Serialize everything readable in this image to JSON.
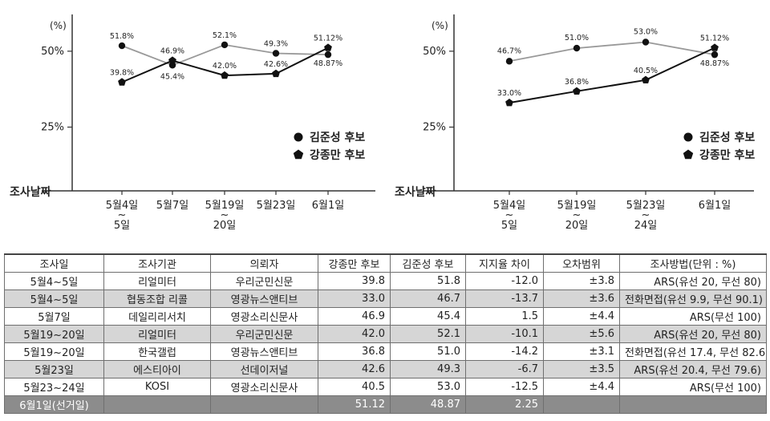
{
  "colors": {
    "kim": "#999999",
    "kang": "#111111",
    "shade": "#d6d6d6",
    "final": "#8c8c8c"
  },
  "chart_data": [
    {
      "type": "line",
      "unit_label": "(%)",
      "y_ticks": [
        "50%",
        "25%"
      ],
      "y_tick_values": [
        50,
        25
      ],
      "ylim": [
        4,
        60
      ],
      "x_axis_title": "조사날짜",
      "categories": [
        [
          "5월4일",
          "~",
          "5일"
        ],
        [
          "5월7일"
        ],
        [
          "5월19일",
          "~",
          "20일"
        ],
        [
          "5월23일"
        ],
        [
          "6월1일"
        ]
      ],
      "legend": [
        "김준성 후보",
        "강종만 후보"
      ],
      "legend_placement": "right",
      "series": [
        {
          "name": "김준성 후보",
          "marker": "circle",
          "values": [
            51.8,
            45.4,
            52.1,
            49.3,
            48.87
          ],
          "labels": [
            "51.8%",
            "45.4%",
            "52.1%",
            "49.3%",
            "48.87%"
          ]
        },
        {
          "name": "강종만 후보",
          "marker": "pentagon",
          "values": [
            39.8,
            46.9,
            42.0,
            42.6,
            51.12
          ],
          "labels": [
            "39.8%",
            "46.9%",
            "42.0%",
            "42.6%",
            "51.12%"
          ]
        }
      ]
    },
    {
      "type": "line",
      "unit_label": "(%)",
      "y_ticks": [
        "50%",
        "25%"
      ],
      "y_tick_values": [
        50,
        25
      ],
      "ylim": [
        4,
        60
      ],
      "x_axis_title": "조사날짜",
      "categories": [
        [
          "5월4일",
          "~",
          "5일"
        ],
        [
          "5월19일",
          "~",
          "20일"
        ],
        [
          "5월23일",
          "~",
          "24일"
        ],
        [
          "6월1일"
        ]
      ],
      "legend": [
        "김준성 후보",
        "강종만 후보"
      ],
      "legend_placement": "right",
      "series": [
        {
          "name": "김준성 후보",
          "marker": "circle",
          "values": [
            46.7,
            51.0,
            53.0,
            48.87
          ],
          "labels": [
            "46.7%",
            "51.0%",
            "53.0%",
            "48.87%"
          ]
        },
        {
          "name": "강종만 후보",
          "marker": "pentagon",
          "values": [
            33.0,
            36.8,
            40.5,
            51.12
          ],
          "labels": [
            "33.0%",
            "36.8%",
            "40.5%",
            "51.12%"
          ]
        }
      ]
    }
  ],
  "table": {
    "headers": [
      "조사일",
      "조사기관",
      "의뢰자",
      "강종만 후보",
      "김준성 후보",
      "지지율 차이",
      "오차범위",
      "조사방법(단위 : %)"
    ],
    "rows": [
      [
        "5월4~5일",
        "리얼미터",
        "우리군민신문",
        "39.8",
        "51.8",
        "-12.0",
        "±3.8",
        "ARS(유선 20, 무선 80)"
      ],
      [
        "5월4~5일",
        "협동조합 리콜",
        "영광뉴스앤티브",
        "33.0",
        "46.7",
        "-13.7",
        "±3.6",
        "전화면접(유선 9.9, 무선 90.1)"
      ],
      [
        "5월7일",
        "데일리리서치",
        "영광소리신문사",
        "46.9",
        "45.4",
        "1.5",
        "±4.4",
        "ARS(무선 100)"
      ],
      [
        "5월19~20일",
        "리얼미터",
        "우리군민신문",
        "42.0",
        "52.1",
        "-10.1",
        "±5.6",
        "ARS(유선 20, 무선 80)"
      ],
      [
        "5월19~20일",
        "한국갤럽",
        "영광뉴스앤티브",
        "36.8",
        "51.0",
        "-14.2",
        "±3.1",
        "전화면접(유선 17.4, 무선 82.6)"
      ],
      [
        "5월23일",
        "에스티아이",
        "선데이저널",
        "42.6",
        "49.3",
        "-6.7",
        "±3.5",
        "ARS(유선 20.4, 무선 79.6)"
      ],
      [
        "5월23~24일",
        "KOSI",
        "영광소리신문사",
        "40.5",
        "53.0",
        "-12.5",
        "±4.4",
        "ARS(무선 100)"
      ],
      [
        "6월1일(선거일)",
        "",
        "",
        "51.12",
        "48.87",
        "2.25",
        "",
        ""
      ]
    ]
  }
}
